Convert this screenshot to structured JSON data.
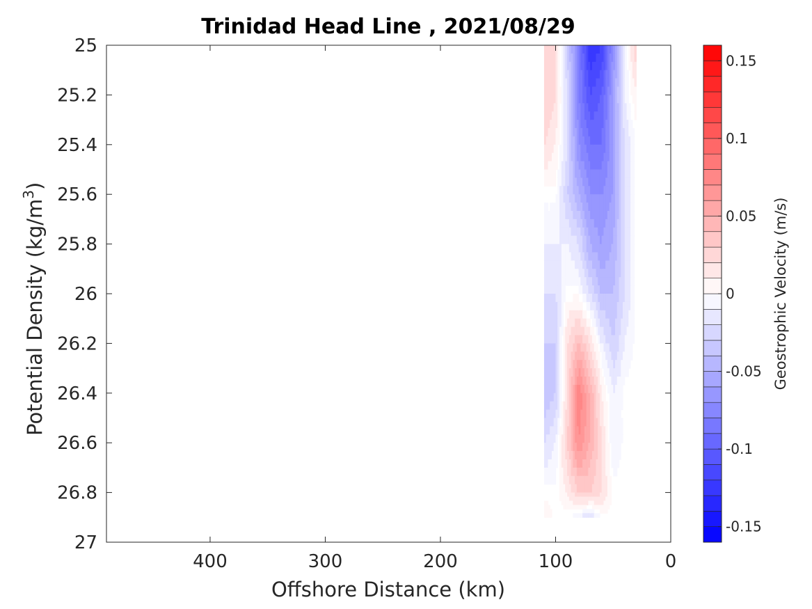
{
  "chart_data": {
    "type": "heatmap",
    "title": "Trinidad Head Line , 2021/08/29",
    "xlabel": "Offshore Distance (km)",
    "ylabel_main": "Potential Density (kg/m",
    "ylabel_sup": "3",
    "ylabel_close": ")",
    "colorbar_label": "Geostrophic Velocity (m/s)",
    "x_reversed": true,
    "xlim": [
      0,
      490
    ],
    "ylim": [
      25,
      27
    ],
    "y_reversed": true,
    "x_ticks": [
      "400",
      "300",
      "200",
      "100",
      "0"
    ],
    "x_tick_values": [
      400,
      300,
      200,
      100,
      0
    ],
    "y_ticks": [
      "25",
      "25.2",
      "25.4",
      "25.6",
      "25.8",
      "26",
      "26.2",
      "26.4",
      "26.6",
      "26.8",
      "27"
    ],
    "y_tick_values": [
      25,
      25.2,
      25.4,
      25.6,
      25.8,
      26,
      26.2,
      26.4,
      26.6,
      26.8,
      27
    ],
    "colorbar_ticks": [
      "0.15",
      "0.1",
      "0.05",
      "0",
      "-0.05",
      "-0.1",
      "-0.15"
    ],
    "colorbar_tick_values": [
      0.15,
      0.1,
      0.05,
      0,
      -0.05,
      -0.1,
      -0.15
    ],
    "clim": [
      -0.16,
      0.16
    ],
    "colorbar_levels": 32,
    "colormap": {
      "negative": "#0000ff",
      "zero": "#ffffff",
      "positive": "#ff0000"
    },
    "x": [
      110,
      100,
      90,
      80,
      70,
      60,
      50,
      40,
      30
    ],
    "y": [
      25.0,
      25.2,
      25.4,
      25.6,
      25.8,
      26.0,
      26.2,
      26.4,
      26.6,
      26.8,
      26.9
    ],
    "z": [
      [
        0.03,
        0.02,
        -0.03,
        -0.08,
        -0.13,
        -0.12,
        -0.07,
        -0.01,
        0.03
      ],
      [
        0.03,
        0.02,
        -0.02,
        -0.08,
        -0.11,
        -0.1,
        -0.06,
        -0.01,
        0.01
      ],
      [
        0.02,
        0.01,
        -0.02,
        -0.07,
        -0.09,
        -0.09,
        -0.06,
        -0.02,
        0.0
      ],
      [
        0.0,
        0.0,
        -0.03,
        -0.05,
        -0.07,
        -0.07,
        -0.06,
        -0.02,
        0.0
      ],
      [
        -0.01,
        -0.01,
        -0.01,
        -0.02,
        -0.05,
        -0.06,
        -0.05,
        -0.02,
        0.0
      ],
      [
        -0.02,
        -0.02,
        0.0,
        0.0,
        -0.02,
        -0.04,
        -0.04,
        -0.02,
        0.0
      ],
      [
        -0.03,
        -0.03,
        0.02,
        0.04,
        0.02,
        -0.01,
        -0.03,
        -0.01,
        0.0
      ],
      [
        -0.04,
        -0.03,
        0.02,
        0.08,
        0.05,
        0.01,
        -0.01,
        0.0,
        0.0
      ],
      [
        -0.02,
        -0.01,
        0.03,
        0.07,
        0.05,
        0.02,
        -0.01,
        0.0,
        0.0
      ],
      [
        0.0,
        0.0,
        0.01,
        0.03,
        0.03,
        0.02,
        0.0,
        0.0,
        0.0
      ],
      [
        0.01,
        0.0,
        0.0,
        -0.01,
        -0.02,
        0.0,
        0.0,
        0.0,
        0.0
      ]
    ]
  }
}
